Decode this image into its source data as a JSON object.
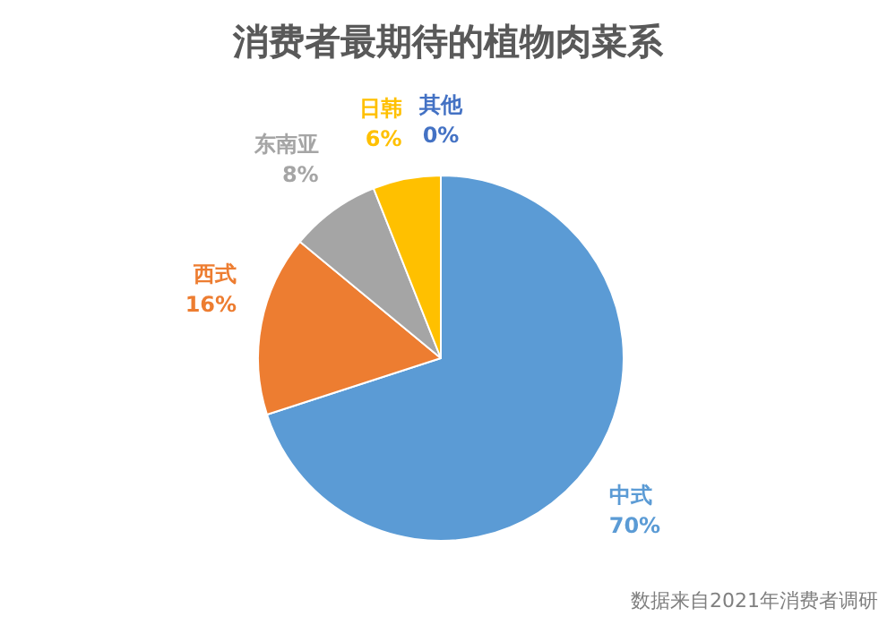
{
  "chart_data": {
    "type": "pie",
    "title": "消费者最期待的植物肉菜系",
    "categories": [
      "中式",
      "西式",
      "东南亚",
      "日韩",
      "其他"
    ],
    "values": [
      70,
      16,
      8,
      6,
      0
    ],
    "value_labels": [
      "70%",
      "16%",
      "8%",
      "6%",
      "0%"
    ],
    "colors": [
      "#5b9bd5",
      "#ed7d31",
      "#a5a5a5",
      "#ffc000",
      "#4472c4"
    ],
    "legend": false,
    "annotations": [
      "数据来自2021年消费者调研"
    ]
  }
}
